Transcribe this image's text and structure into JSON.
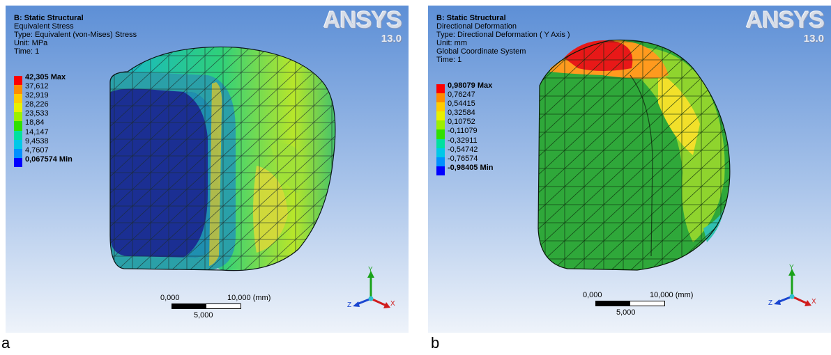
{
  "brand": {
    "name": "ANSYS",
    "version": "13.0"
  },
  "axes": {
    "x": "X",
    "y": "Y",
    "z": "Z"
  },
  "panels": [
    {
      "letter": "a",
      "header": {
        "title": "B: Static Structural",
        "lines": [
          "Equivalent Stress",
          "Type: Equivalent (von-Mises) Stress",
          "Unit: MPa",
          "Time: 1"
        ]
      },
      "legend": {
        "labels": [
          "42,305 Max",
          "37,612",
          "32,919",
          "28,226",
          "23,533",
          "18,84",
          "14,147",
          "9,4538",
          "4,7607",
          "0,067574 Min"
        ],
        "colors": [
          "#ff0000",
          "#ff8c00",
          "#ffcc00",
          "#e8f000",
          "#9cf000",
          "#30e000",
          "#00e0a0",
          "#00c8e8",
          "#0090ff",
          "#0000ff"
        ]
      },
      "scale": {
        "start": "0,000",
        "end": "10,000 (mm)",
        "mid": "5,000"
      }
    },
    {
      "letter": "b",
      "header": {
        "title": "B: Static Structural",
        "lines": [
          "Directional Deformation",
          "Type: Directional Deformation ( Y Axis )",
          "Unit: mm",
          "Global Coordinate System",
          "Time: 1"
        ]
      },
      "legend": {
        "labels": [
          "0,98079 Max",
          "0,76247",
          "0,54415",
          "0,32584",
          "0,10752",
          "-0,11079",
          "-0,32911",
          "-0,54742",
          "-0,76574",
          "-0,98405 Min"
        ],
        "colors": [
          "#ff0000",
          "#ff8c00",
          "#ffcc00",
          "#e8f000",
          "#9cf000",
          "#30e000",
          "#00e0a0",
          "#00c8e8",
          "#0090ff",
          "#0000ff"
        ]
      },
      "scale": {
        "start": "0,000",
        "end": "10,000 (mm)",
        "mid": "5,000"
      }
    }
  ]
}
